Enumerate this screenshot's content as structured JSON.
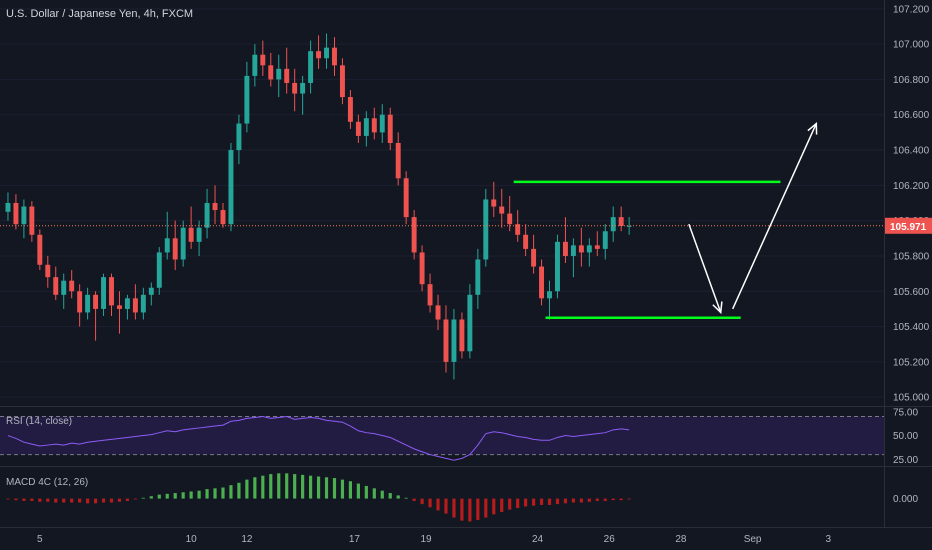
{
  "header": {
    "title": "U.S. Dollar / Japanese Yen, 4h, FXCM"
  },
  "colors": {
    "up": "#26a69a",
    "down": "#ef5350",
    "rsi": "#8b5cf6",
    "rsi_band": "#2a1f4d",
    "macd_up": "#4caf50",
    "macd_down": "#b71c1c",
    "current_price_line": "#f57c4f",
    "annotation_green": "#00ff1a",
    "annotation_arrow": "#ffffff"
  },
  "chart_data": [
    {
      "name": "price",
      "type": "candlestick",
      "title": "U.S. Dollar / Japanese Yen, 4h, FXCM",
      "ylim": [
        104.95,
        107.25
      ],
      "y_ticks": [
        "105.000",
        "105.200",
        "105.400",
        "105.600",
        "105.800",
        "106.000",
        "106.200",
        "106.400",
        "106.600",
        "106.800",
        "107.000",
        "107.200"
      ],
      "last_price": 105.971,
      "last_price_label": "105.971",
      "x_ticks": [
        {
          "label": "5",
          "x": 4.0
        },
        {
          "label": "10",
          "x": 23.0
        },
        {
          "label": "12",
          "x": 30.0
        },
        {
          "label": "17",
          "x": 43.5
        },
        {
          "label": "19",
          "x": 52.5
        },
        {
          "label": "24",
          "x": 66.5
        },
        {
          "label": "26",
          "x": 75.5
        },
        {
          "label": "28",
          "x": 84.5
        },
        {
          "label": "Sep",
          "x": 93.5
        },
        {
          "label": "3",
          "x": 103.0
        }
      ],
      "xlim": [
        -1,
        110
      ],
      "candles": [
        [
          106.05,
          106.16,
          106.0,
          106.1
        ],
        [
          106.1,
          106.15,
          105.95,
          105.98
        ],
        [
          105.98,
          106.12,
          105.9,
          106.08
        ],
        [
          106.08,
          106.11,
          105.88,
          105.92
        ],
        [
          105.92,
          105.95,
          105.72,
          105.75
        ],
        [
          105.75,
          105.8,
          105.62,
          105.68
        ],
        [
          105.68,
          105.74,
          105.55,
          105.58
        ],
        [
          105.58,
          105.7,
          105.5,
          105.66
        ],
        [
          105.66,
          105.72,
          105.56,
          105.6
        ],
        [
          105.6,
          105.64,
          105.4,
          105.48
        ],
        [
          105.48,
          105.62,
          105.44,
          105.58
        ],
        [
          105.58,
          105.6,
          105.32,
          105.5
        ],
        [
          105.5,
          105.7,
          105.46,
          105.68
        ],
        [
          105.68,
          105.7,
          105.46,
          105.52
        ],
        [
          105.52,
          105.6,
          105.36,
          105.5
        ],
        [
          105.5,
          105.58,
          105.44,
          105.56
        ],
        [
          105.56,
          105.64,
          105.44,
          105.48
        ],
        [
          105.48,
          105.62,
          105.44,
          105.58
        ],
        [
          105.58,
          105.65,
          105.52,
          105.62
        ],
        [
          105.62,
          105.85,
          105.58,
          105.82
        ],
        [
          105.82,
          106.05,
          105.78,
          105.9
        ],
        [
          105.9,
          106.0,
          105.72,
          105.78
        ],
        [
          105.78,
          106.0,
          105.74,
          105.96
        ],
        [
          105.96,
          106.08,
          105.84,
          105.88
        ],
        [
          105.88,
          106.0,
          105.8,
          105.96
        ],
        [
          105.96,
          106.18,
          105.9,
          106.1
        ],
        [
          106.1,
          106.2,
          105.98,
          106.06
        ],
        [
          106.06,
          106.1,
          105.96,
          105.98
        ],
        [
          105.98,
          106.44,
          105.94,
          106.4
        ],
        [
          106.4,
          106.6,
          106.32,
          106.55
        ],
        [
          106.55,
          106.9,
          106.5,
          106.82
        ],
        [
          106.82,
          107.0,
          106.76,
          106.94
        ],
        [
          106.94,
          107.02,
          106.82,
          106.88
        ],
        [
          106.88,
          106.95,
          106.76,
          106.8
        ],
        [
          106.8,
          106.94,
          106.7,
          106.86
        ],
        [
          106.86,
          106.98,
          106.72,
          106.78
        ],
        [
          106.78,
          106.86,
          106.62,
          106.72
        ],
        [
          106.72,
          106.82,
          106.6,
          106.78
        ],
        [
          106.78,
          107.02,
          106.72,
          106.96
        ],
        [
          106.96,
          107.05,
          106.86,
          106.92
        ],
        [
          106.92,
          107.06,
          106.86,
          106.98
        ],
        [
          106.98,
          107.04,
          106.82,
          106.88
        ],
        [
          106.88,
          106.92,
          106.66,
          106.7
        ],
        [
          106.7,
          106.74,
          106.52,
          106.56
        ],
        [
          106.56,
          106.6,
          106.44,
          106.48
        ],
        [
          106.48,
          106.62,
          106.42,
          106.58
        ],
        [
          106.58,
          106.64,
          106.46,
          106.5
        ],
        [
          106.5,
          106.66,
          106.44,
          106.6
        ],
        [
          106.6,
          106.64,
          106.4,
          106.44
        ],
        [
          106.44,
          106.5,
          106.2,
          106.24
        ],
        [
          106.24,
          106.28,
          105.98,
          106.02
        ],
        [
          106.02,
          106.06,
          105.78,
          105.82
        ],
        [
          105.82,
          105.86,
          105.6,
          105.64
        ],
        [
          105.64,
          105.7,
          105.48,
          105.52
        ],
        [
          105.52,
          105.58,
          105.38,
          105.44
        ],
        [
          105.44,
          105.52,
          105.14,
          105.2
        ],
        [
          105.2,
          105.5,
          105.1,
          105.44
        ],
        [
          105.44,
          105.48,
          105.22,
          105.26
        ],
        [
          105.26,
          105.64,
          105.22,
          105.58
        ],
        [
          105.58,
          105.84,
          105.5,
          105.78
        ],
        [
          105.78,
          106.18,
          105.74,
          106.12
        ],
        [
          106.12,
          106.22,
          106.02,
          106.08
        ],
        [
          106.08,
          106.18,
          105.96,
          106.04
        ],
        [
          106.04,
          106.14,
          105.94,
          105.98
        ],
        [
          105.98,
          106.06,
          105.88,
          105.92
        ],
        [
          105.92,
          105.98,
          105.8,
          105.84
        ],
        [
          105.84,
          105.92,
          105.7,
          105.74
        ],
        [
          105.74,
          105.78,
          105.52,
          105.56
        ],
        [
          105.56,
          105.66,
          105.44,
          105.6
        ],
        [
          105.6,
          105.92,
          105.56,
          105.88
        ],
        [
          105.88,
          106.02,
          105.76,
          105.8
        ],
        [
          105.8,
          105.9,
          105.68,
          105.86
        ],
        [
          105.86,
          105.96,
          105.74,
          105.82
        ],
        [
          105.82,
          105.9,
          105.74,
          105.86
        ],
        [
          105.86,
          105.94,
          105.8,
          105.84
        ],
        [
          105.84,
          105.98,
          105.78,
          105.94
        ],
        [
          105.94,
          106.08,
          105.88,
          106.02
        ],
        [
          106.02,
          106.08,
          105.94,
          105.97
        ],
        [
          105.97,
          106.02,
          105.92,
          105.971
        ]
      ],
      "annotations": {
        "resistance": {
          "y": 106.22,
          "x0": 63.5,
          "x1": 97.0
        },
        "support": {
          "y": 105.45,
          "x0": 67.5,
          "x1": 92.0
        },
        "arrow_down": {
          "x0": 85.5,
          "y0": 105.98,
          "x1": 89.5,
          "y1": 105.48
        },
        "arrow_up": {
          "x0": 91.0,
          "y0": 105.5,
          "x1": 101.5,
          "y1": 106.55
        }
      }
    },
    {
      "name": "rsi",
      "type": "line",
      "title": "RSI (14, close)",
      "ylim": [
        18,
        80
      ],
      "y_ticks": [
        "75.00",
        "50.00",
        "25.00"
      ],
      "band": [
        30,
        70
      ],
      "values": [
        50,
        47,
        43,
        41,
        39,
        40,
        41,
        40,
        42,
        41,
        43,
        44,
        45,
        46,
        47,
        48,
        49,
        50,
        51,
        53,
        55,
        54,
        56,
        57,
        58,
        59,
        60,
        61,
        65,
        66,
        68,
        69,
        70,
        68,
        69,
        70,
        67,
        68,
        69,
        68,
        66,
        65,
        64,
        60,
        55,
        53,
        52,
        50,
        48,
        44,
        40,
        36,
        33,
        30,
        28,
        26,
        24,
        26,
        30,
        40,
        52,
        54,
        53,
        51,
        49,
        48,
        46,
        45,
        45,
        48,
        50,
        49,
        50,
        51,
        52,
        53,
        56,
        57,
        56
      ]
    },
    {
      "name": "macd",
      "type": "bar",
      "title": "MACD 4C (12, 26)",
      "ylim": [
        -0.36,
        0.4
      ],
      "y_ticks": [
        "0.000"
      ],
      "values": [
        -0.01,
        -0.02,
        -0.03,
        -0.03,
        -0.04,
        -0.04,
        -0.05,
        -0.05,
        -0.05,
        -0.05,
        -0.06,
        -0.06,
        -0.05,
        -0.05,
        -0.04,
        -0.03,
        -0.01,
        0.01,
        0.03,
        0.05,
        0.06,
        0.07,
        0.08,
        0.09,
        0.1,
        0.12,
        0.13,
        0.14,
        0.17,
        0.2,
        0.24,
        0.27,
        0.29,
        0.31,
        0.32,
        0.32,
        0.31,
        0.3,
        0.29,
        0.28,
        0.27,
        0.26,
        0.24,
        0.22,
        0.19,
        0.16,
        0.13,
        0.1,
        0.07,
        0.04,
        0.01,
        -0.03,
        -0.07,
        -0.11,
        -0.15,
        -0.19,
        -0.24,
        -0.28,
        -0.29,
        -0.27,
        -0.24,
        -0.2,
        -0.17,
        -0.14,
        -0.12,
        -0.1,
        -0.09,
        -0.08,
        -0.08,
        -0.07,
        -0.06,
        -0.05,
        -0.05,
        -0.04,
        -0.03,
        -0.03,
        -0.02,
        -0.02,
        -0.01
      ]
    }
  ]
}
